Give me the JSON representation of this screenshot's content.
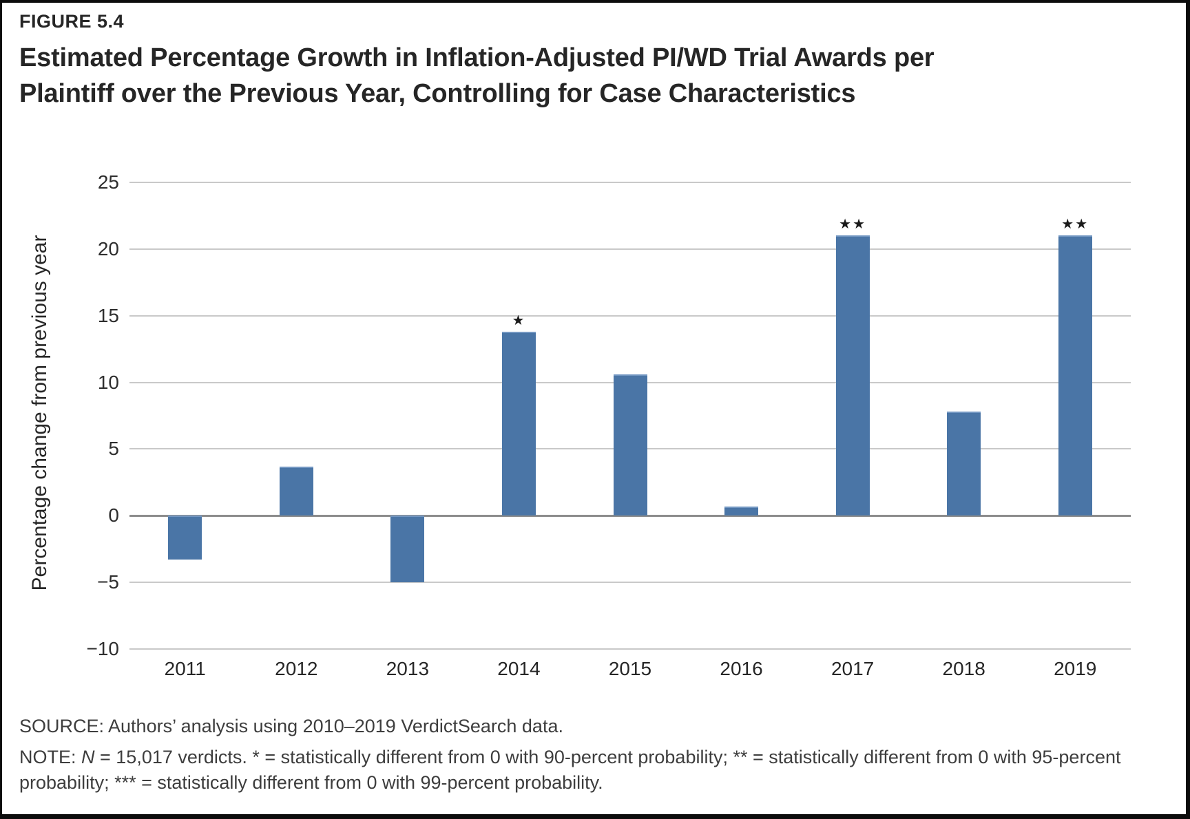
{
  "figure": {
    "label": "FIGURE 5.4",
    "title_line1": "Estimated Percentage Growth in Inflation-Adjusted PI/WD Trial Awards per",
    "title_line2": "Plaintiff over the Previous Year, Controlling for Case Characteristics"
  },
  "chart_data": {
    "type": "bar",
    "categories": [
      "2011",
      "2012",
      "2013",
      "2014",
      "2015",
      "2016",
      "2017",
      "2018",
      "2019"
    ],
    "values": [
      -3.3,
      3.7,
      -5.0,
      13.8,
      10.6,
      0.7,
      21.0,
      7.8,
      21.0
    ],
    "significance_markers": [
      "",
      "",
      "",
      "★",
      "",
      "",
      "★★",
      "",
      "★★"
    ],
    "title": "Estimated Percentage Growth in Inflation-Adjusted PI/WD Trial Awards per Plaintiff over the Previous Year, Controlling for Case Characteristics",
    "xlabel": "",
    "ylabel": "Percentage change from previous year",
    "yticks": [
      25,
      20,
      15,
      10,
      5,
      0,
      -5,
      -10
    ],
    "ytick_labels": [
      "25",
      "20",
      "15",
      "10",
      "5",
      "0",
      "−5",
      "−10"
    ],
    "ylim": [
      -10,
      25
    ],
    "grid": true,
    "legend_position": "none",
    "bar_color": "#4a75a6",
    "grid_color": "#c9c9c9",
    "zero_line_color": "#8c8c8c"
  },
  "footer": {
    "source": "SOURCE: Authors’ analysis using 2010–2019 VerdictSearch data.",
    "note_prefix": "NOTE: ",
    "note_n": "N",
    "note_rest": " = 15,017 verdicts. * = statistically different from 0 with 90-percent probability; ** = statistically different from 0 with 95-percent probability; *** = statistically different from 0 with 99-percent probability."
  }
}
